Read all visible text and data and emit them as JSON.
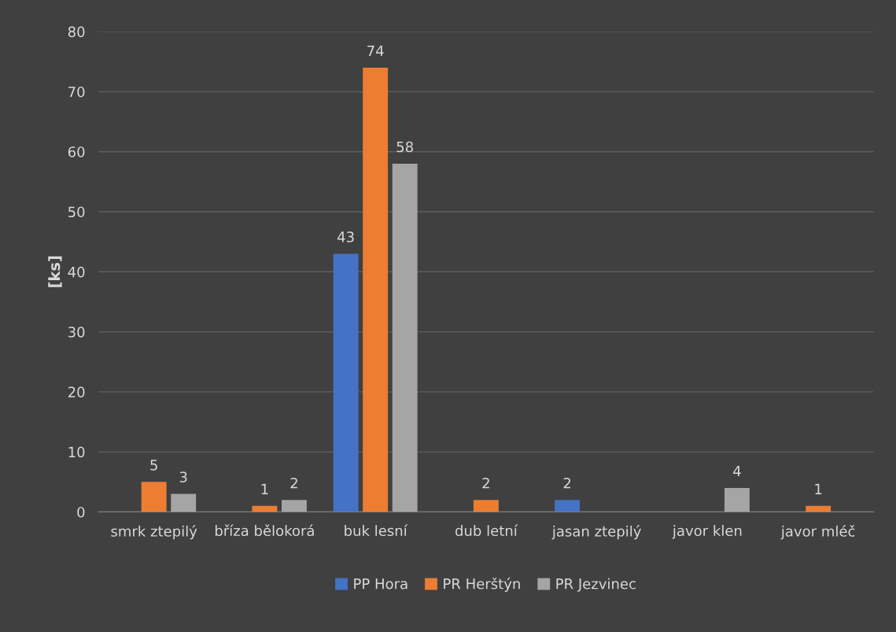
{
  "chart_data": {
    "type": "bar",
    "ylabel": "[ks]",
    "categories": [
      "smrk ztepilý",
      "bříza bělokorá",
      "buk lesní",
      "dub letní",
      "jasan ztepilý",
      "javor klen",
      "javor mléč"
    ],
    "series": [
      {
        "name": "PP Hora",
        "color": "#4472c4",
        "values": [
          null,
          null,
          43,
          null,
          2,
          null,
          null
        ]
      },
      {
        "name": "PR Herštýn",
        "color": "#ed7d31",
        "values": [
          5,
          1,
          74,
          2,
          null,
          null,
          1
        ]
      },
      {
        "name": "PR Jezvinec",
        "color": "#a5a5a5",
        "values": [
          3,
          2,
          58,
          null,
          null,
          4,
          null
        ]
      }
    ],
    "ylim": [
      0,
      80
    ],
    "yticks": [
      0,
      10,
      20,
      30,
      40,
      50,
      60,
      70,
      80
    ],
    "grid": "y",
    "legend": "bottom",
    "data_labels": true
  }
}
